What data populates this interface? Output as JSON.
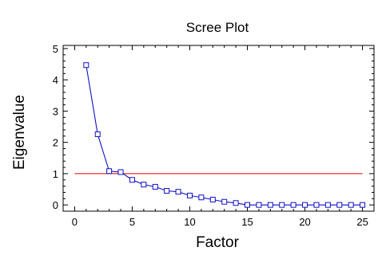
{
  "chart_data": {
    "type": "line",
    "title": "Scree Plot",
    "xlabel": "Factor",
    "ylabel": "Eigenvalue",
    "xlim": [
      -1,
      26
    ],
    "ylim": [
      -0.2,
      5.1
    ],
    "x_ticks": [
      0,
      5,
      10,
      15,
      20,
      25
    ],
    "y_ticks": [
      0,
      1,
      2,
      3,
      4,
      5
    ],
    "grid": false,
    "legend": "none",
    "series": [
      {
        "color": "#1010c0",
        "marker": "square",
        "x": [
          1,
          2,
          3,
          4,
          5,
          6,
          7,
          8,
          9,
          10,
          11,
          12,
          13,
          14,
          15,
          16,
          17,
          18,
          19,
          20,
          21,
          22,
          23,
          24,
          25
        ],
        "values": [
          4.47,
          2.26,
          1.08,
          1.05,
          0.8,
          0.65,
          0.58,
          0.45,
          0.42,
          0.3,
          0.24,
          0.17,
          0.1,
          0.06,
          0.0,
          0.0,
          0.0,
          0.0,
          0.0,
          0.0,
          0.0,
          0.0,
          0.0,
          0.0,
          0.0
        ]
      }
    ],
    "reference_line": {
      "y": 1,
      "color": "#e03030"
    }
  }
}
